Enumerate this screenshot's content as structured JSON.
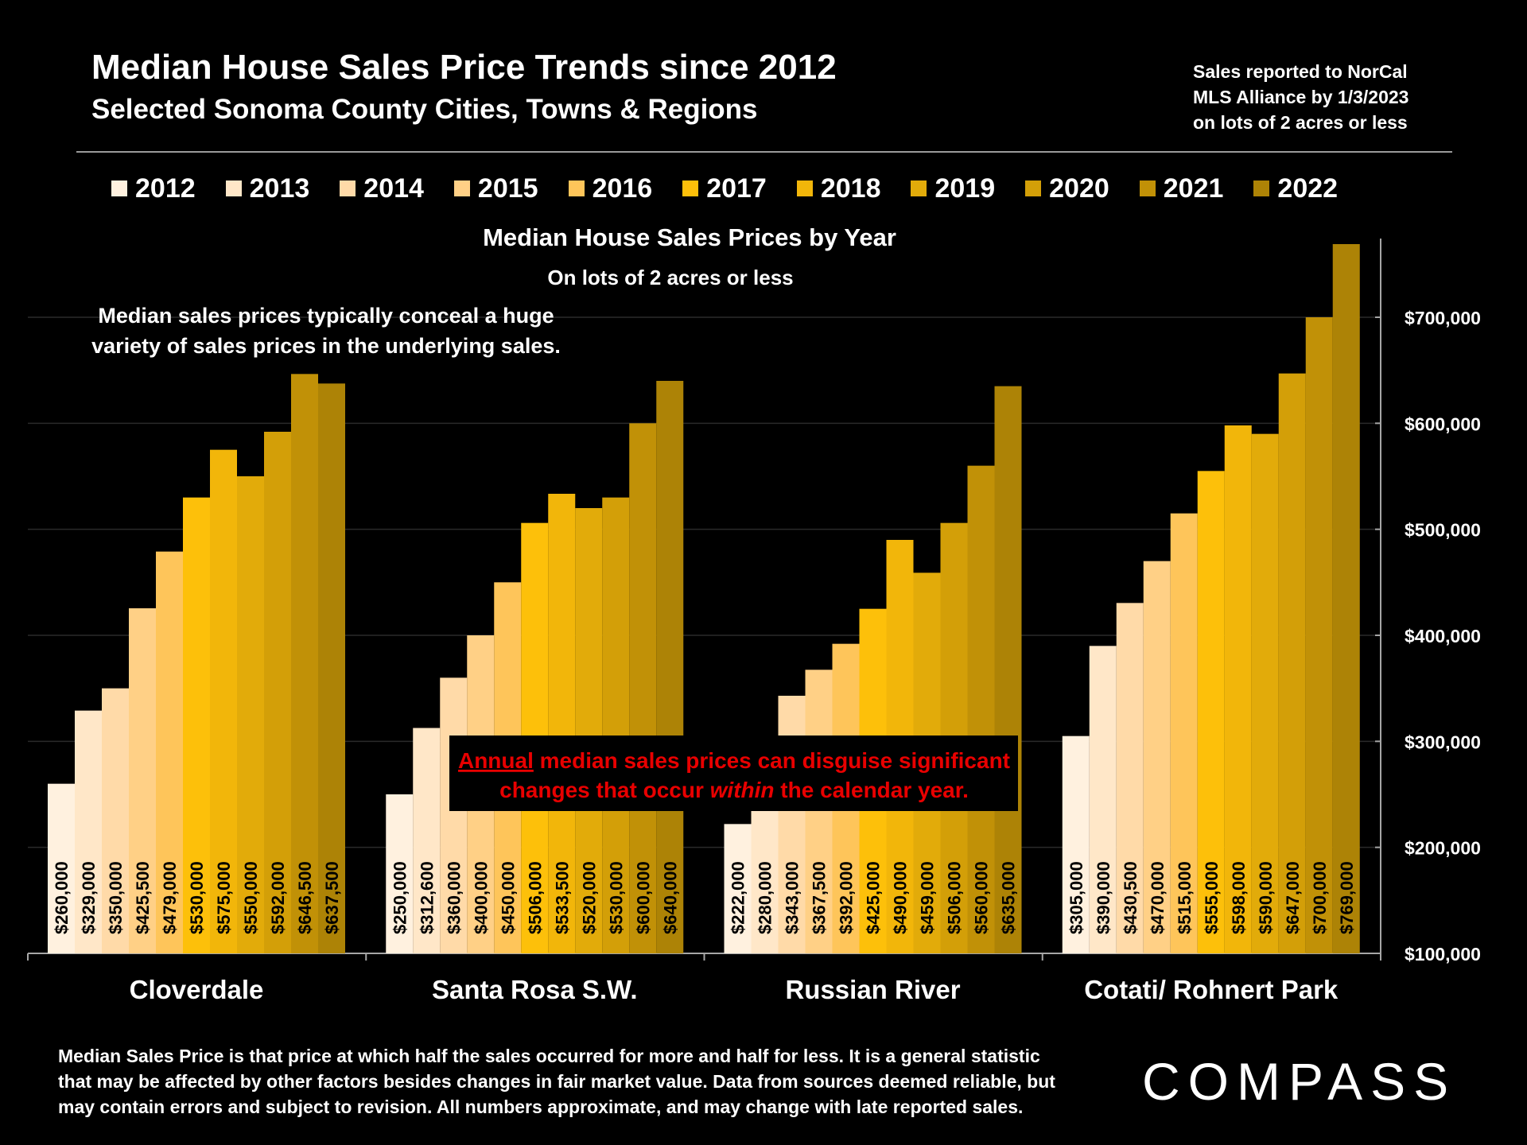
{
  "header": {
    "title": "Median House Sales Price Trends since 2012",
    "subtitle": "Selected Sonoma County Cities, Towns & Regions",
    "source_lines": [
      "Sales reported to NorCal",
      "MLS Alliance by 1/3/2023",
      "on lots of 2 acres or less"
    ]
  },
  "colors": {
    "years": [
      "#fff1df",
      "#ffe7c8",
      "#ffdaa8",
      "#ffd086",
      "#fec55a",
      "#fdc00a",
      "#f2b60a",
      "#e2ab0a",
      "#d39f08",
      "#c19107",
      "#ad8306"
    ],
    "annotation_text": "#e80000",
    "axis": "#a6a6a6",
    "gridline": "#2a2a2a"
  },
  "chart_data": {
    "type": "bar",
    "title": "Median House Sales Prices by Year",
    "subtitle": "On lots of 2 acres or less",
    "categories": [
      "Cloverdale",
      "Santa Rosa S.W.",
      "Russian River",
      "Cotati/ Rohnert Park"
    ],
    "series": [
      {
        "name": "2012",
        "values": [
          260000,
          250000,
          222000,
          305000
        ],
        "labels": [
          "$260,000",
          "$250,000",
          "$222,000",
          "$305,000"
        ]
      },
      {
        "name": "2013",
        "values": [
          329000,
          312600,
          280000,
          390000
        ],
        "labels": [
          "$329,000",
          "$312,600",
          "$280,000",
          "$390,000"
        ]
      },
      {
        "name": "2014",
        "values": [
          350000,
          360000,
          343000,
          430500
        ],
        "labels": [
          "$350,000",
          "$360,000",
          "$343,000",
          "$430,500"
        ]
      },
      {
        "name": "2015",
        "values": [
          425500,
          400000,
          367500,
          470000
        ],
        "labels": [
          "$425,500",
          "$400,000",
          "$367,500",
          "$470,000"
        ]
      },
      {
        "name": "2016",
        "values": [
          479000,
          450000,
          392000,
          515000
        ],
        "labels": [
          "$479,000",
          "$450,000",
          "$392,000",
          "$515,000"
        ]
      },
      {
        "name": "2017",
        "values": [
          530000,
          506000,
          425000,
          555000
        ],
        "labels": [
          "$530,000",
          "$506,000",
          "$425,000",
          "$555,000"
        ]
      },
      {
        "name": "2018",
        "values": [
          575000,
          533500,
          490000,
          598000
        ],
        "labels": [
          "$575,000",
          "$533,500",
          "$490,000",
          "$598,000"
        ]
      },
      {
        "name": "2019",
        "values": [
          550000,
          520000,
          459000,
          590000
        ],
        "labels": [
          "$550,000",
          "$520,000",
          "$459,000",
          "$590,000"
        ]
      },
      {
        "name": "2020",
        "values": [
          592000,
          530000,
          506000,
          647000
        ],
        "labels": [
          "$592,000",
          "$530,000",
          "$506,000",
          "$647,000"
        ]
      },
      {
        "name": "2021",
        "values": [
          646500,
          600000,
          560000,
          700000
        ],
        "labels": [
          "$646,500",
          "$600,000",
          "$560,000",
          "$700,000"
        ]
      },
      {
        "name": "2022",
        "values": [
          637500,
          640000,
          635000,
          769000
        ],
        "labels": [
          "$637,500",
          "$640,000",
          "$635,000",
          "$769,000"
        ]
      }
    ],
    "ylim": [
      100000,
      770000
    ],
    "yticks": [
      100000,
      200000,
      300000,
      400000,
      500000,
      600000,
      700000
    ],
    "ytick_labels": [
      "$100,000",
      "$200,000",
      "$300,000",
      "$400,000",
      "$500,000",
      "$600,000",
      "$700,000"
    ],
    "y_axis_side": "right",
    "annotations": {
      "top_left_lines": [
        "Median sales prices typically conceal a huge",
        "variety of sales prices in the underlying sales."
      ],
      "center_box": {
        "line1_underlined": "Annual",
        "line1_rest": " median sales prices can disguise significant",
        "line2_before": "changes that occur ",
        "line2_italic": "within",
        "line2_after": " the calendar year."
      }
    }
  },
  "footer": {
    "lines": [
      "Median Sales Price is that price at which half the sales occurred for more and half for less. It is a general statistic",
      "that may be affected by other factors besides changes in fair market value. Data from sources deemed reliable, but",
      "may contain errors and subject to revision.  All numbers approximate, and may change with late reported sales."
    ]
  },
  "brand": {
    "logo_text": "COMPASS"
  }
}
